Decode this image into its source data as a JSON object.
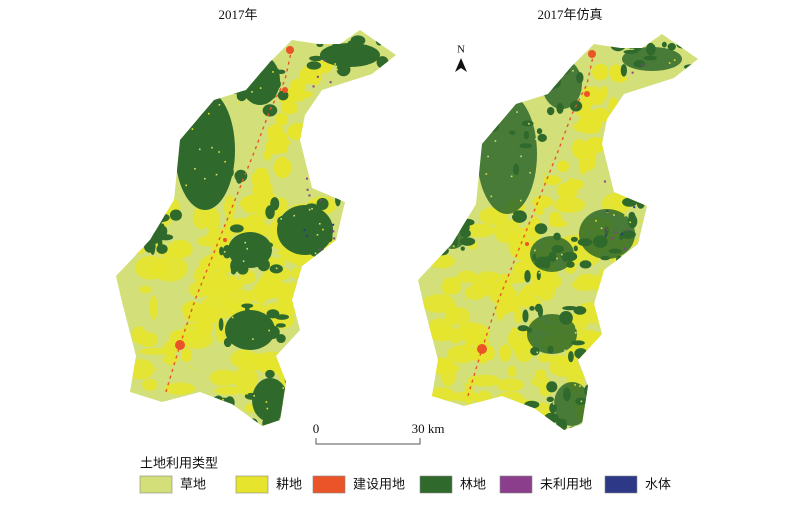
{
  "maps": [
    {
      "title": "2017年"
    },
    {
      "title": "2017年仿真"
    }
  ],
  "north_arrow": {
    "label": "N"
  },
  "scale_bar": {
    "labels": [
      "0",
      "30 km"
    ]
  },
  "legend": {
    "title": "土地利用类型",
    "items": [
      {
        "label": "草地",
        "color": "#d3df78"
      },
      {
        "label": "耕地",
        "color": "#e6e42c"
      },
      {
        "label": "建设用地",
        "color": "#ea5428"
      },
      {
        "label": "林地",
        "color": "#2f6a2c"
      },
      {
        "label": "未利用地",
        "color": "#8a3e8c"
      },
      {
        "label": "水体",
        "color": "#2d3887"
      }
    ]
  }
}
